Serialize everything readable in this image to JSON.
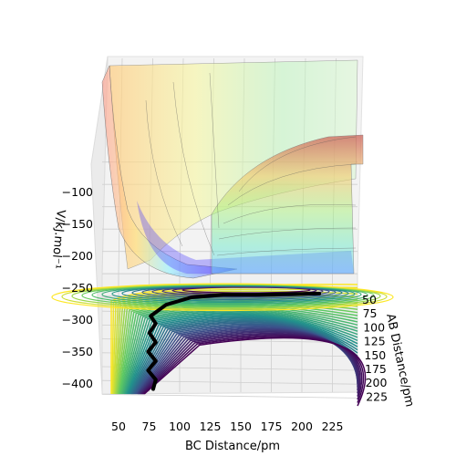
{
  "chart_data": {
    "type": "surface3d",
    "title": "",
    "axes": {
      "x": {
        "label": "BC Distance/pm",
        "ticks": [
          "50",
          "75",
          "100",
          "125",
          "150",
          "175",
          "200",
          "225"
        ],
        "range": [
          40,
          240
        ]
      },
      "y": {
        "label": "AB Distance/pm",
        "ticks": [
          "50",
          "75",
          "100",
          "125",
          "150",
          "175",
          "200",
          "225"
        ],
        "range": [
          40,
          230
        ]
      },
      "z": {
        "label": "V/kJ.mol$^{-1}$",
        "label_display": "V/kJ.mol⁻¹",
        "ticks": [
          "−100",
          "−150",
          "−200",
          "−250",
          "−300",
          "−350",
          "−400"
        ],
        "range": [
          -420,
          -60
        ]
      }
    },
    "surface": {
      "colormap": "jet",
      "alpha": 0.35,
      "description_values": {
        "entrance_valley_min": -250,
        "exit_valley_min": -410,
        "plateau": -100,
        "repulsive_wall_max": -50
      }
    },
    "contours": {
      "colormap": "viridis",
      "offset": -420,
      "levels": 40,
      "range": [
        -410,
        -100
      ]
    },
    "trajectory": {
      "color": "#000000",
      "points": [
        [
          80,
          225
        ],
        [
          82,
          210
        ],
        [
          76,
          195
        ],
        [
          82,
          180
        ],
        [
          76,
          165
        ],
        [
          82,
          150
        ],
        [
          77,
          135
        ],
        [
          82,
          120
        ],
        [
          78,
          108
        ],
        [
          90,
          90
        ],
        [
          110,
          78
        ],
        [
          135,
          74
        ],
        [
          160,
          74
        ],
        [
          185,
          73
        ],
        [
          210,
          72
        ]
      ]
    },
    "grid": true
  }
}
